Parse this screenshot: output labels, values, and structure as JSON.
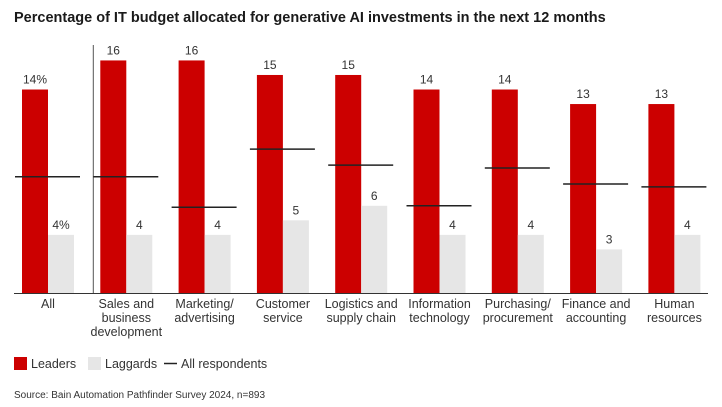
{
  "chart_data": {
    "type": "bar",
    "title": "Percentage of IT budget allocated for generative AI investments in the next 12 months",
    "categories": [
      [
        "All"
      ],
      [
        "Sales and",
        "business",
        "development"
      ],
      [
        "Marketing/",
        "advertising"
      ],
      [
        "Customer",
        "service"
      ],
      [
        "Logistics and",
        "supply chain"
      ],
      [
        "Information",
        "technology"
      ],
      [
        "Purchasing/",
        "procurement"
      ],
      [
        "Finance and",
        "accounting"
      ],
      [
        "Human",
        "resources"
      ]
    ],
    "series": [
      {
        "name": "Leaders",
        "color": "#cc0000",
        "values": [
          14,
          16,
          16,
          15,
          15,
          14,
          14,
          13,
          13
        ],
        "labels": [
          "14%",
          "16",
          "16",
          "15",
          "15",
          "14",
          "14",
          "13",
          "13"
        ]
      },
      {
        "name": "Laggards",
        "color": "#e6e6e6",
        "values": [
          4,
          4,
          4,
          5,
          6,
          4,
          4,
          3,
          4
        ],
        "labels": [
          "4%",
          "4",
          "4",
          "5",
          "6",
          "4",
          "4",
          "3",
          "4"
        ]
      },
      {
        "name": "All respondents",
        "color": "#222222",
        "values": [
          8.0,
          8.0,
          5.9,
          9.9,
          8.8,
          6.0,
          8.6,
          7.5,
          7.3
        ]
      }
    ],
    "ylim": [
      0,
      17.2
    ],
    "legend": [
      "Leaders",
      "Laggards",
      "All respondents"
    ],
    "source": "Source: Bain Automation Pathfinder Survey 2024, n=893"
  }
}
